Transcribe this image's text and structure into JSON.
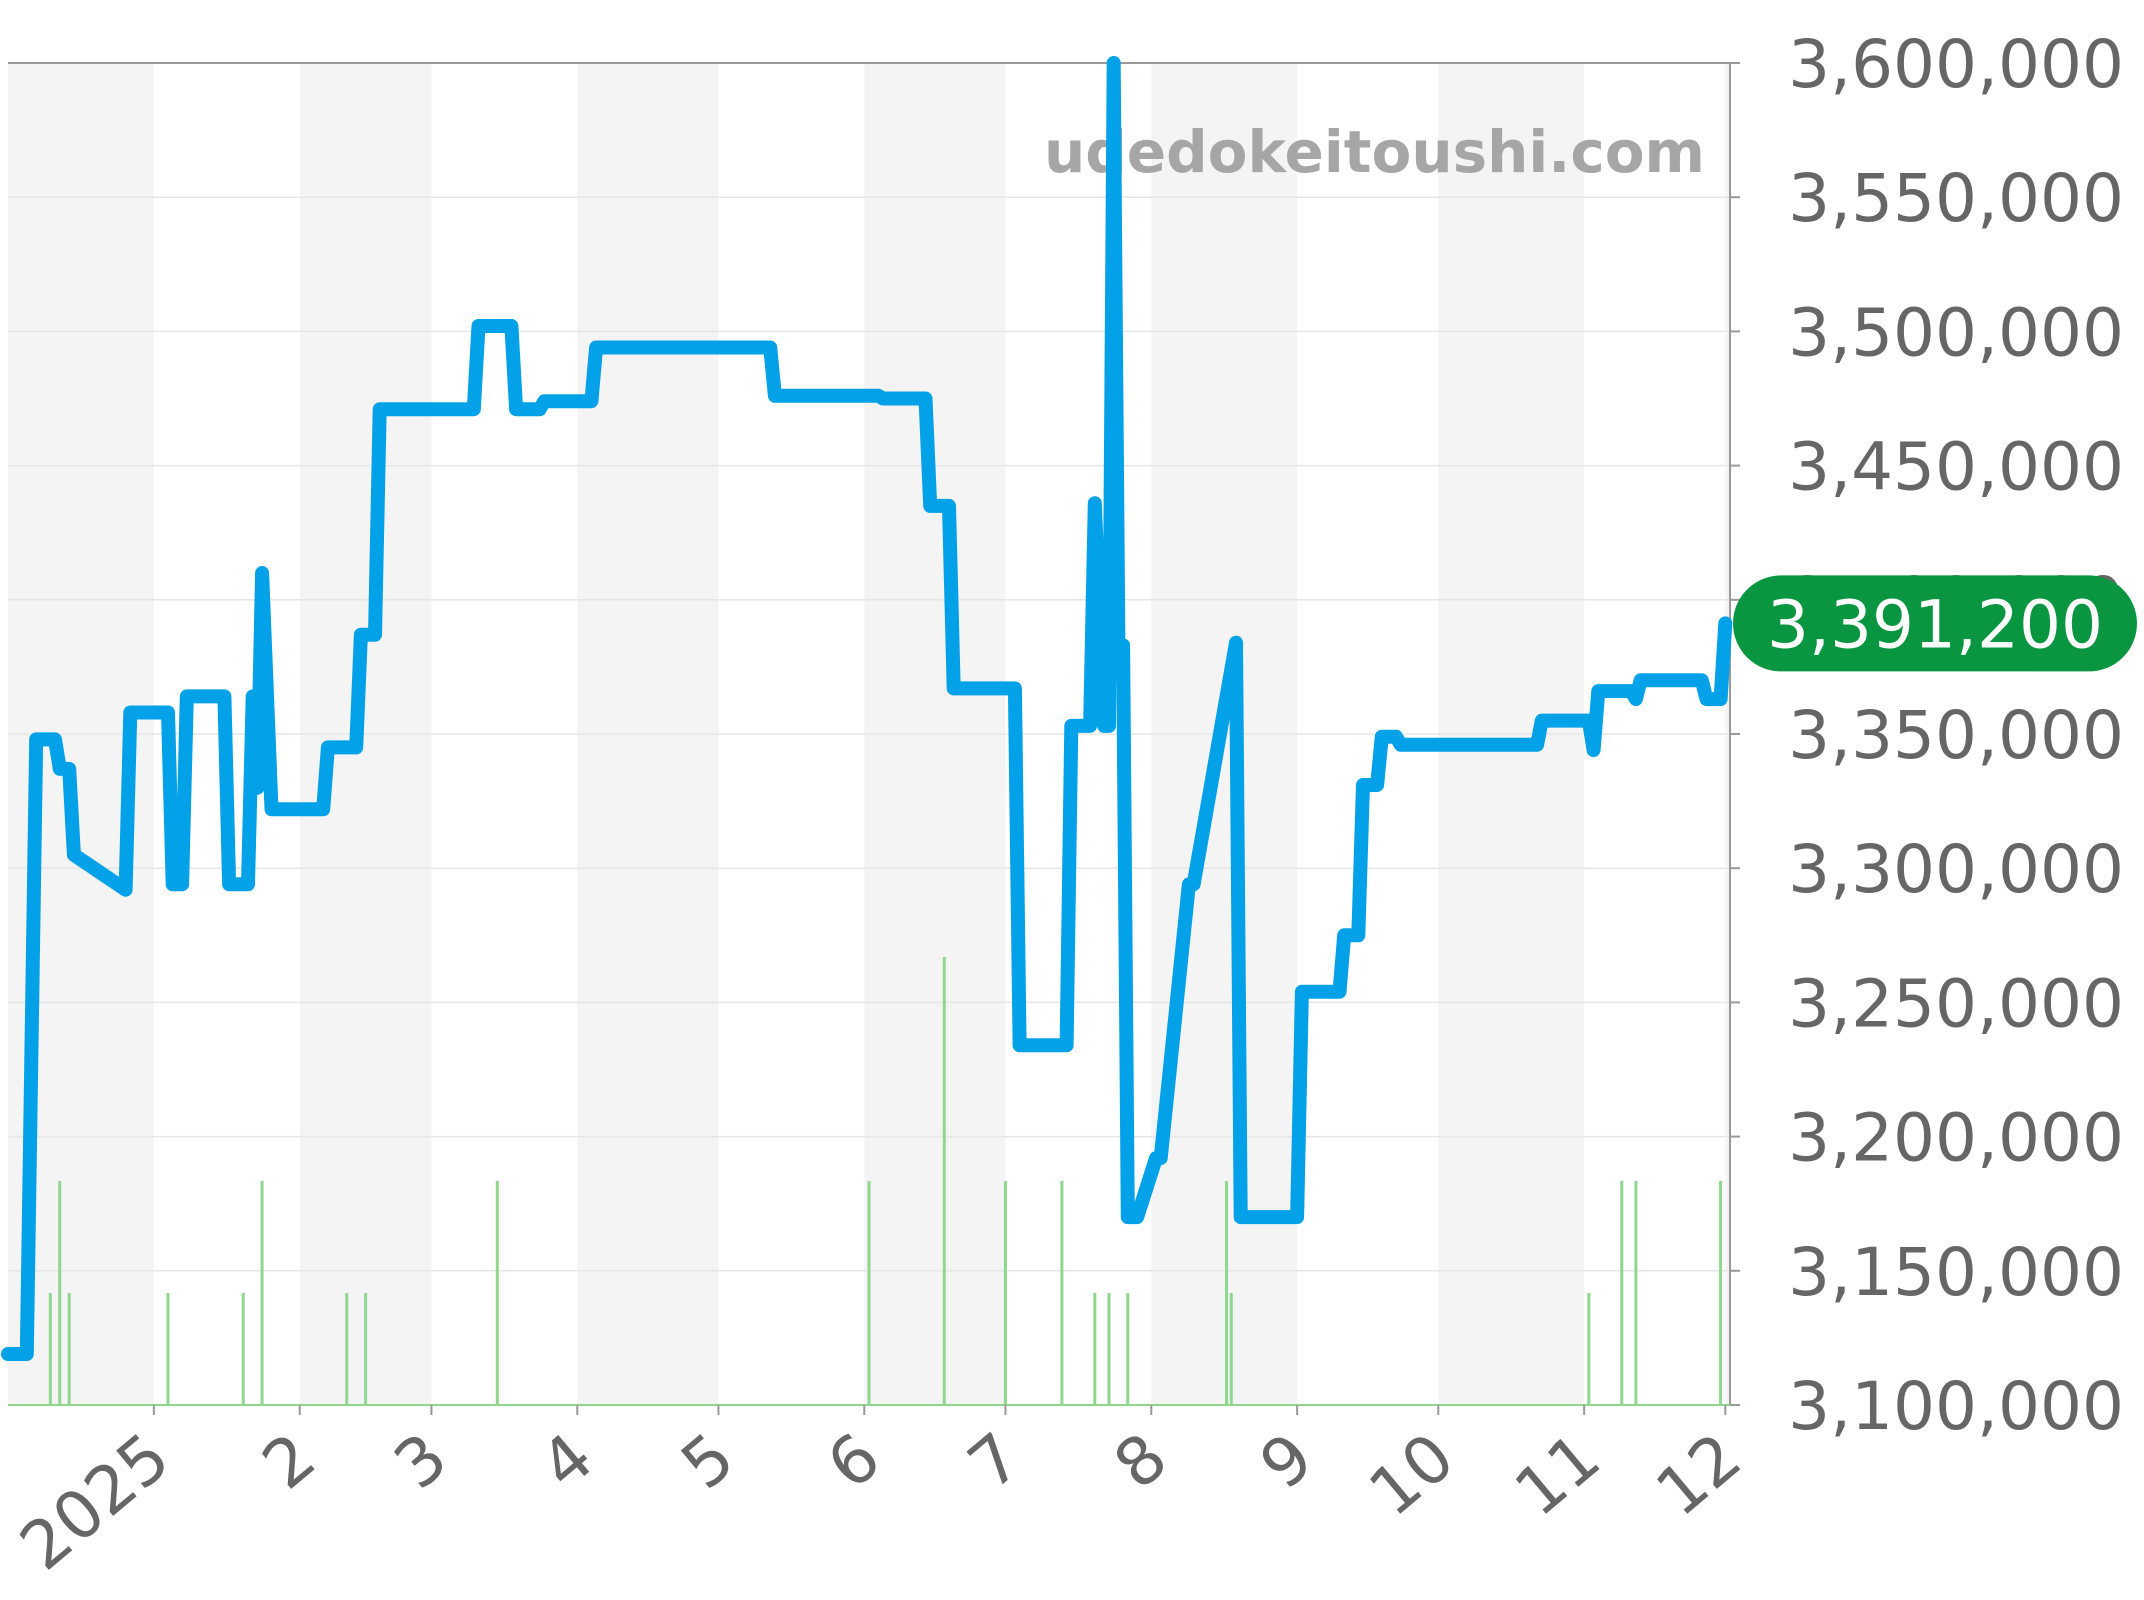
{
  "watermark": "udedokeitoushi.com",
  "colors": {
    "line": "#03a1e8",
    "volume": "#8fd68f",
    "badge": "#0a9640",
    "band": "#f4f4f4",
    "grid": "#e6e6e6",
    "axis": "#999999",
    "tick_text": "#666666"
  },
  "chart_data": {
    "type": "line",
    "title": "",
    "xlabel": "",
    "ylabel": "",
    "ylim": [
      3100000,
      3600000
    ],
    "y_ticks": [
      3100000,
      3150000,
      3200000,
      3250000,
      3300000,
      3350000,
      3400000,
      3450000,
      3500000,
      3550000,
      3600000
    ],
    "y_tick_labels": [
      "3,100,000",
      "3,150,000",
      "3,200,000",
      "3,250,000",
      "3,300,000",
      "3,350,000",
      "3,400,000",
      "3,450,000",
      "3,500,000",
      "3,550,000",
      "3,600,000"
    ],
    "xlim": [
      "2024-12-01",
      "2025-12-02"
    ],
    "x_ticks": [
      "2025-01-01",
      "2025-02-01",
      "2025-03-01",
      "2025-04-01",
      "2025-05-01",
      "2025-06-01",
      "2025-07-01",
      "2025-08-01",
      "2025-09-01",
      "2025-10-01",
      "2025-11-01",
      "2025-12-01"
    ],
    "x_tick_labels": [
      "2025",
      "2",
      "3",
      "4",
      "5",
      "6",
      "7",
      "8",
      "9",
      "10",
      "11",
      "12"
    ],
    "grid": true,
    "legend": "none",
    "current_value": 3391200,
    "current_value_label": "3,391,200",
    "series": [
      {
        "x": [
          "2024-12-01",
          "2024-12-05",
          "2024-12-07",
          "2024-12-11",
          "2024-12-12",
          "2024-12-14",
          "2024-12-15",
          "2024-12-26",
          "2024-12-27",
          "2025-01-04",
          "2025-01-05",
          "2025-01-07",
          "2025-01-08",
          "2025-01-16",
          "2025-01-17",
          "2025-01-21",
          "2025-01-22",
          "2025-01-23",
          "2025-01-24",
          "2025-01-26",
          "2025-01-27",
          "2025-02-06",
          "2025-02-07",
          "2025-02-13",
          "2025-02-14",
          "2025-02-17",
          "2025-02-18",
          "2025-03-10",
          "2025-03-11",
          "2025-03-18",
          "2025-03-19",
          "2025-03-24",
          "2025-03-25",
          "2025-04-04",
          "2025-04-05",
          "2025-05-12",
          "2025-05-13",
          "2025-06-04",
          "2025-06-05",
          "2025-06-14",
          "2025-06-15",
          "2025-06-19",
          "2025-06-20",
          "2025-07-03",
          "2025-07-04",
          "2025-07-14",
          "2025-07-15",
          "2025-07-19",
          "2025-07-20",
          "2025-07-22",
          "2025-07-23",
          "2025-07-24",
          "2025-07-25",
          "2025-07-26",
          "2025-07-27",
          "2025-07-29",
          "2025-08-02",
          "2025-08-03",
          "2025-08-09",
          "2025-08-10",
          "2025-08-19",
          "2025-08-20",
          "2025-09-01",
          "2025-09-02",
          "2025-09-10",
          "2025-09-11",
          "2025-09-14",
          "2025-09-15",
          "2025-09-18",
          "2025-09-19",
          "2025-09-22",
          "2025-09-23",
          "2025-10-22",
          "2025-10-23",
          "2025-11-02",
          "2025-11-03",
          "2025-11-04",
          "2025-11-11",
          "2025-11-12",
          "2025-11-13",
          "2025-11-14",
          "2025-11-26",
          "2025-11-27",
          "2025-11-30",
          "2025-12-01"
        ],
        "y": [
          3119000,
          3119000,
          3348000,
          3348000,
          3337000,
          3337000,
          3305000,
          3292000,
          3358000,
          3358000,
          3294000,
          3294000,
          3364000,
          3364000,
          3294000,
          3294000,
          3364000,
          3330000,
          3410000,
          3322000,
          3322000,
          3322000,
          3345000,
          3345000,
          3387000,
          3387000,
          3471000,
          3471000,
          3502000,
          3502000,
          3471000,
          3471000,
          3474000,
          3474000,
          3494000,
          3494000,
          3476000,
          3476000,
          3475000,
          3475000,
          3435000,
          3435000,
          3367000,
          3367000,
          3234000,
          3234000,
          3353000,
          3353000,
          3436000,
          3353000,
          3353000,
          3600000,
          3383000,
          3383000,
          3170000,
          3170000,
          3192000,
          3192000,
          3294000,
          3294000,
          3384000,
          3170000,
          3170000,
          3254000,
          3254000,
          3275000,
          3275000,
          3331000,
          3331000,
          3349000,
          3349000,
          3346000,
          3346000,
          3355000,
          3355000,
          3344000,
          3366000,
          3366000,
          3363000,
          3370000,
          3370000,
          3370000,
          3363000,
          3363000,
          3391200
        ]
      }
    ],
    "volume": {
      "x": [
        "2024-12-10",
        "2024-12-12",
        "2024-12-14",
        "2025-01-04",
        "2025-01-20",
        "2025-01-24",
        "2025-02-11",
        "2025-02-15",
        "2025-03-15",
        "2025-06-02",
        "2025-06-18",
        "2025-07-01",
        "2025-07-13",
        "2025-07-20",
        "2025-07-23",
        "2025-07-27",
        "2025-08-17",
        "2025-08-18",
        "2025-11-02",
        "2025-11-09",
        "2025-11-12",
        "2025-11-30"
      ],
      "values": [
        1,
        2,
        1,
        1,
        1,
        2,
        1,
        1,
        2,
        2,
        4,
        2,
        2,
        1,
        1,
        1,
        2,
        1,
        1,
        2,
        2,
        2
      ]
    }
  }
}
